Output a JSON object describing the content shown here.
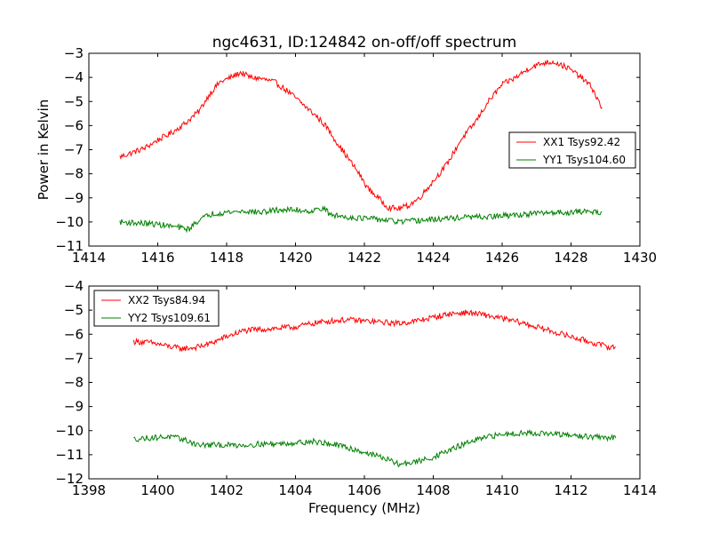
{
  "figure": {
    "title": "ngc4631, ID:124842 on-off/off spectrum"
  },
  "chart_data": [
    {
      "type": "line",
      "title": "ngc4631, ID:124842 on-off/off spectrum",
      "xlabel": "",
      "ylabel": "Power in Kelvin",
      "xlim": [
        1414,
        1430
      ],
      "ylim": [
        -11,
        -3
      ],
      "xticks": [
        "1414",
        "1416",
        "1418",
        "1420",
        "1422",
        "1424",
        "1426",
        "1428",
        "1430"
      ],
      "yticks": [
        "−3",
        "−4",
        "−5",
        "−6",
        "−7",
        "−8",
        "−9",
        "−10",
        "−11"
      ],
      "grid": false,
      "legend": "center-right",
      "noise": 0.12,
      "series": [
        {
          "name": "XX1 Tsys92.42",
          "color": "#ff0000",
          "points": [
            [
              1414.9,
              -7.3
            ],
            [
              1415.2,
              -7.15
            ],
            [
              1415.6,
              -6.95
            ],
            [
              1416.0,
              -6.6
            ],
            [
              1416.4,
              -6.3
            ],
            [
              1416.8,
              -5.9
            ],
            [
              1417.2,
              -5.4
            ],
            [
              1417.5,
              -4.7
            ],
            [
              1417.8,
              -4.2
            ],
            [
              1418.2,
              -3.95
            ],
            [
              1418.4,
              -3.8
            ],
            [
              1418.7,
              -4.0
            ],
            [
              1419.0,
              -4.05
            ],
            [
              1419.4,
              -4.2
            ],
            [
              1419.8,
              -4.6
            ],
            [
              1420.2,
              -5.1
            ],
            [
              1420.6,
              -5.6
            ],
            [
              1420.9,
              -6.05
            ],
            [
              1421.2,
              -6.7
            ],
            [
              1421.5,
              -7.3
            ],
            [
              1421.8,
              -7.9
            ],
            [
              1422.1,
              -8.6
            ],
            [
              1422.4,
              -9.0
            ],
            [
              1422.7,
              -9.4
            ],
            [
              1423.0,
              -9.45
            ],
            [
              1423.3,
              -9.3
            ],
            [
              1423.6,
              -9.0
            ],
            [
              1424.0,
              -8.3
            ],
            [
              1424.4,
              -7.6
            ],
            [
              1424.8,
              -6.6
            ],
            [
              1425.2,
              -5.9
            ],
            [
              1425.6,
              -5.0
            ],
            [
              1426.0,
              -4.3
            ],
            [
              1426.4,
              -4.0
            ],
            [
              1426.8,
              -3.6
            ],
            [
              1427.2,
              -3.4
            ],
            [
              1427.5,
              -3.35
            ],
            [
              1427.9,
              -3.6
            ],
            [
              1428.3,
              -4.0
            ],
            [
              1428.6,
              -4.4
            ],
            [
              1428.9,
              -5.3
            ]
          ]
        },
        {
          "name": "YY1 Tsys104.60",
          "color": "#008000",
          "points": [
            [
              1414.9,
              -10.0
            ],
            [
              1415.5,
              -10.05
            ],
            [
              1416.0,
              -10.1
            ],
            [
              1416.5,
              -10.2
            ],
            [
              1416.9,
              -10.3
            ],
            [
              1417.2,
              -9.9
            ],
            [
              1417.6,
              -9.65
            ],
            [
              1418.0,
              -9.6
            ],
            [
              1418.5,
              -9.55
            ],
            [
              1419.0,
              -9.6
            ],
            [
              1419.5,
              -9.5
            ],
            [
              1420.0,
              -9.5
            ],
            [
              1420.5,
              -9.55
            ],
            [
              1420.8,
              -9.4
            ],
            [
              1421.0,
              -9.7
            ],
            [
              1421.5,
              -9.8
            ],
            [
              1422.0,
              -9.85
            ],
            [
              1422.5,
              -9.9
            ],
            [
              1423.0,
              -10.0
            ],
            [
              1423.5,
              -9.95
            ],
            [
              1424.0,
              -9.9
            ],
            [
              1424.5,
              -9.85
            ],
            [
              1425.0,
              -9.8
            ],
            [
              1425.5,
              -9.8
            ],
            [
              1426.0,
              -9.75
            ],
            [
              1426.5,
              -9.7
            ],
            [
              1427.0,
              -9.65
            ],
            [
              1427.5,
              -9.6
            ],
            [
              1428.0,
              -9.6
            ],
            [
              1428.5,
              -9.55
            ],
            [
              1428.9,
              -9.6
            ]
          ]
        }
      ]
    },
    {
      "type": "line",
      "title": "",
      "xlabel": "Frequency (MHz)",
      "ylabel": "",
      "xlim": [
        1398,
        1414
      ],
      "ylim": [
        -12,
        -4
      ],
      "xticks": [
        "1398",
        "1400",
        "1402",
        "1404",
        "1406",
        "1408",
        "1410",
        "1412",
        "1414"
      ],
      "yticks": [
        "−4",
        "−5",
        "−6",
        "−7",
        "−8",
        "−9",
        "−10",
        "−11",
        "−12"
      ],
      "grid": false,
      "legend": "top-left",
      "noise": 0.12,
      "series": [
        {
          "name": "XX2 Tsys84.94",
          "color": "#ff0000",
          "points": [
            [
              1399.3,
              -6.3
            ],
            [
              1399.8,
              -6.35
            ],
            [
              1400.3,
              -6.5
            ],
            [
              1400.7,
              -6.6
            ],
            [
              1401.1,
              -6.55
            ],
            [
              1401.5,
              -6.4
            ],
            [
              1402.0,
              -6.1
            ],
            [
              1402.5,
              -5.85
            ],
            [
              1403.0,
              -5.8
            ],
            [
              1403.5,
              -5.75
            ],
            [
              1404.0,
              -5.7
            ],
            [
              1404.5,
              -5.55
            ],
            [
              1405.0,
              -5.45
            ],
            [
              1405.5,
              -5.4
            ],
            [
              1406.0,
              -5.45
            ],
            [
              1406.5,
              -5.5
            ],
            [
              1407.0,
              -5.55
            ],
            [
              1407.5,
              -5.45
            ],
            [
              1408.0,
              -5.3
            ],
            [
              1408.5,
              -5.15
            ],
            [
              1409.0,
              -5.1
            ],
            [
              1409.5,
              -5.2
            ],
            [
              1410.0,
              -5.35
            ],
            [
              1410.5,
              -5.5
            ],
            [
              1411.0,
              -5.7
            ],
            [
              1411.5,
              -5.9
            ],
            [
              1412.0,
              -6.1
            ],
            [
              1412.5,
              -6.3
            ],
            [
              1413.0,
              -6.5
            ],
            [
              1413.3,
              -6.55
            ]
          ]
        },
        {
          "name": "YY2 Tsys109.61",
          "color": "#008000",
          "points": [
            [
              1399.3,
              -10.35
            ],
            [
              1399.8,
              -10.3
            ],
            [
              1400.3,
              -10.25
            ],
            [
              1400.7,
              -10.35
            ],
            [
              1401.2,
              -10.6
            ],
            [
              1401.8,
              -10.6
            ],
            [
              1402.5,
              -10.6
            ],
            [
              1403.0,
              -10.55
            ],
            [
              1403.5,
              -10.55
            ],
            [
              1404.0,
              -10.5
            ],
            [
              1404.5,
              -10.45
            ],
            [
              1405.0,
              -10.55
            ],
            [
              1405.5,
              -10.7
            ],
            [
              1406.0,
              -10.9
            ],
            [
              1406.5,
              -11.1
            ],
            [
              1407.0,
              -11.4
            ],
            [
              1407.5,
              -11.3
            ],
            [
              1408.0,
              -11.1
            ],
            [
              1408.5,
              -10.8
            ],
            [
              1409.0,
              -10.5
            ],
            [
              1409.5,
              -10.3
            ],
            [
              1410.0,
              -10.15
            ],
            [
              1410.5,
              -10.1
            ],
            [
              1411.0,
              -10.1
            ],
            [
              1411.5,
              -10.15
            ],
            [
              1412.0,
              -10.2
            ],
            [
              1412.5,
              -10.25
            ],
            [
              1413.0,
              -10.3
            ],
            [
              1413.3,
              -10.3
            ]
          ]
        }
      ]
    }
  ]
}
